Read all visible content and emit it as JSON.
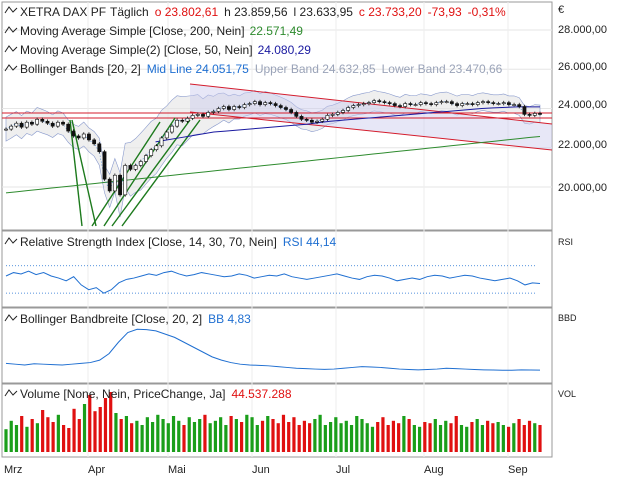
{
  "header": {
    "symbol": "XETRA DAX PF",
    "interval": "Täglich",
    "o": "o 23.802,61",
    "h": "h 23.859,56",
    "l": "l 23.633,95",
    "c": "c 23.733,20",
    "chg": "-73,93",
    "chg_pct": "-0,31%"
  },
  "legends": {
    "ma200_label": "Moving Average Simple [Close, 200, Nein]",
    "ma200_value": "22.571,49",
    "ma50_label": "Moving Average Simple(2) [Close, 50, Nein]",
    "ma50_value": "24.080,29",
    "bb_label": "Bollinger Bands [20, 2]",
    "bb_mid": "Mid Line 24.051,75",
    "bb_upper": "Upper Band 24.632,85",
    "bb_lower": "Lower Band 23.470,66",
    "rsi_label": "Relative Strength Index [Close, 14, 30, 70, Nein]",
    "rsi_value": "RSI 44,14",
    "bbw_label": "Bollinger Bandbreite [Close, 20, 2]",
    "bbw_value": "BB 4,83",
    "vol_label": "Volume [None, Nein, PriceChange, Ja]",
    "vol_value": "44.537.288"
  },
  "panel_tags": {
    "price": "€",
    "rsi": "RSI",
    "bbw": "BBD",
    "vol": "VOL"
  },
  "colors": {
    "up": "#1a9e1a",
    "down": "#e01010",
    "ma200": "#2e8b2e",
    "ma50": "#1a1aa0",
    "bb": "#8899cc",
    "rsi": "#1f6fd1",
    "trend_red": "#d41c2c",
    "accent_blue": "#1f6fd1"
  },
  "chart_data": {
    "type": "candlestick",
    "x_ticks": [
      "Mrz",
      "Apr",
      "Mai",
      "Jun",
      "Jul",
      "Aug",
      "Sep"
    ],
    "y_ticks": [
      "28.000,00",
      "26.000,00",
      "24.000,00",
      "22.000,00",
      "20.000,00"
    ],
    "y_tick_values": [
      28000,
      26000,
      24000,
      22000,
      20000
    ],
    "ylim": [
      17800,
      29200
    ],
    "price": [
      22950,
      23100,
      23250,
      23050,
      23300,
      23200,
      23450,
      23350,
      23250,
      23100,
      23300,
      23200,
      22850,
      22600,
      22500,
      22700,
      22400,
      22200,
      21800,
      20400,
      19800,
      20600,
      19600,
      21100,
      20900,
      21100,
      21300,
      21600,
      21900,
      22100,
      22500,
      22800,
      23100,
      23400,
      23350,
      23500,
      23650,
      23700,
      23600,
      23800,
      23850,
      24000,
      24100,
      23950,
      24100,
      24050,
      24200,
      24250,
      24350,
      24200,
      24300,
      24250,
      24150,
      24050,
      23950,
      23800,
      23600,
      23450,
      23400,
      23300,
      23350,
      23450,
      23650,
      23700,
      23800,
      23900,
      24050,
      24150,
      24200,
      24250,
      24300,
      24400,
      24350,
      24300,
      24250,
      24150,
      24100,
      24250,
      24200,
      24200,
      24300,
      24250,
      24200,
      24300,
      24350,
      24350,
      24250,
      24150,
      24250,
      24250,
      24200,
      24300,
      24350,
      24300,
      24250,
      24250,
      24300,
      24200,
      24200,
      24100,
      23700,
      23650,
      23750,
      23733
    ],
    "ma200": [
      19700,
      19760,
      19820,
      19880,
      19940,
      20000,
      20060,
      20120,
      20180,
      20240,
      20300,
      20360,
      20420,
      20480,
      20540,
      20600,
      20660,
      20720,
      20780,
      20840,
      20900,
      20960,
      21020,
      21080,
      21140,
      21200,
      21260,
      21320,
      21380,
      21440,
      21500,
      21560,
      21620,
      21680,
      21740,
      21800,
      21860,
      21920,
      21980,
      22040,
      22100,
      22160,
      22220,
      22280,
      22340,
      22400,
      22460,
      22520,
      22571
    ],
    "ma50": [
      22300,
      22400,
      22500,
      22600,
      22700,
      22800,
      22850,
      22900,
      22950,
      23000,
      23050,
      23100,
      23150,
      23200,
      23280,
      23350,
      23400,
      23450,
      23500,
      23550,
      23600,
      23650,
      23700,
      23750,
      23800,
      23850,
      23900,
      23950,
      24000,
      24030,
      24060,
      24080,
      24080,
      24080
    ],
    "rsi": [
      55,
      60,
      58,
      62,
      57,
      60,
      55,
      52,
      48,
      54,
      42,
      35,
      38,
      30,
      35,
      45,
      50,
      52,
      55,
      58,
      56,
      60,
      62,
      58,
      55,
      57,
      60,
      58,
      56,
      54,
      55,
      58,
      56,
      52,
      54,
      56,
      55,
      58,
      54,
      52,
      50,
      52,
      54,
      56,
      58,
      55,
      52,
      50,
      54,
      56,
      55,
      52,
      48,
      50,
      52,
      50,
      54,
      56,
      55,
      52,
      54,
      56,
      55,
      52,
      50,
      48,
      50,
      52,
      48,
      42,
      45,
      44
    ],
    "bbw": [
      9,
      8.5,
      8,
      8.8,
      8.5,
      8.2,
      8,
      8.5,
      9,
      9.5,
      11,
      15,
      22,
      28,
      30,
      29.8,
      29,
      27,
      25,
      22,
      19,
      16,
      13,
      11,
      9.5,
      8.5,
      8,
      7.8,
      7.5,
      7,
      6.5,
      6,
      5.8,
      5.5,
      5.3,
      5.5,
      6,
      6.5,
      7,
      6.8,
      6.5,
      6,
      5.5,
      5.2,
      5,
      5.2,
      5.5,
      6,
      5.8,
      5.5,
      5.2,
      5,
      4.9,
      4.8,
      4.8,
      5,
      4.9,
      4.83
    ],
    "volume": [
      38,
      52,
      45,
      60,
      42,
      55,
      48,
      70,
      58,
      50,
      62,
      45,
      40,
      72,
      55,
      80,
      95,
      68,
      75,
      90,
      100,
      65,
      55,
      60,
      48,
      52,
      45,
      58,
      50,
      62,
      55,
      48,
      60,
      52,
      45,
      58,
      50,
      55,
      62,
      48,
      52,
      58,
      45,
      60,
      55,
      50,
      62,
      58,
      45,
      52,
      60,
      55,
      48,
      62,
      50,
      58,
      45,
      52,
      48,
      55,
      62,
      45,
      50,
      58,
      48,
      52,
      45,
      60,
      55,
      48,
      42,
      50,
      58,
      45,
      52,
      48,
      60,
      55,
      45,
      42,
      50,
      48,
      55,
      45,
      52,
      48,
      60,
      45,
      42,
      50,
      55,
      45,
      52,
      48,
      50,
      45,
      42,
      48,
      55,
      45,
      52,
      48,
      45
    ]
  }
}
